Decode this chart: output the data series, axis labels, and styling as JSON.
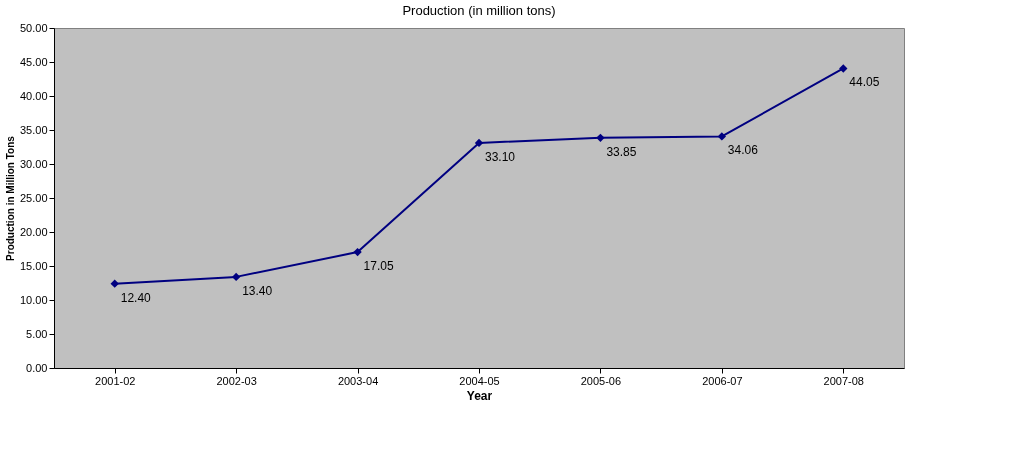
{
  "chart_data": {
    "type": "line",
    "title": "Production (in million tons)",
    "xlabel": "Year",
    "ylabel": "Production in Million Tons",
    "categories": [
      "2001-02",
      "2002-03",
      "2003-04",
      "2004-05",
      "2005-06",
      "2006-07",
      "2007-08"
    ],
    "series": [
      {
        "color": "#000080",
        "values": [
          12.4,
          13.4,
          17.05,
          33.1,
          33.85,
          34.06,
          44.05
        ],
        "value_labels": [
          "12.40",
          "13.40",
          "17.05",
          "33.10",
          "33.85",
          "34.06",
          "44.05"
        ]
      }
    ],
    "ylim": [
      0,
      50
    ],
    "yticks": [
      {
        "value": 0,
        "label": "0.00"
      },
      {
        "value": 5,
        "label": "5.00"
      },
      {
        "value": 10,
        "label": "10.00"
      },
      {
        "value": 15,
        "label": "15.00"
      },
      {
        "value": 20,
        "label": "20.00"
      },
      {
        "value": 25,
        "label": "25.00"
      },
      {
        "value": 30,
        "label": "30.00"
      },
      {
        "value": 35,
        "label": "35.00"
      },
      {
        "value": 40,
        "label": "40.00"
      },
      {
        "value": 45,
        "label": "45.00"
      },
      {
        "value": 50,
        "label": "50.00"
      }
    ],
    "grid": false,
    "legend": false,
    "marker": "diamond",
    "line_style": "solid"
  }
}
